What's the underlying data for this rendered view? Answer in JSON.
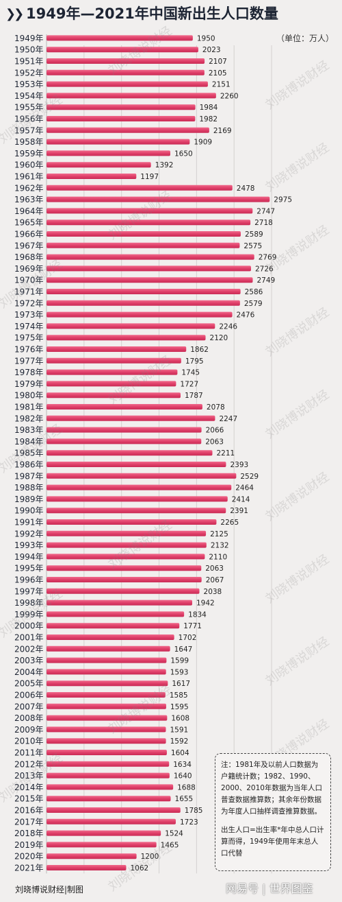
{
  "header": {
    "title": "1949年—2021年中国新出生人口数量",
    "unit": "（单位：万人）"
  },
  "chart_data": {
    "type": "bar",
    "orientation": "horizontal",
    "title": "1949年—2021年中国新出生人口数量",
    "unit": "（单位：万人）",
    "xlim": [
      0,
      3100
    ],
    "grid": true,
    "bar_color": "#e0406a",
    "categories": [
      "1949年",
      "1950年",
      "1951年",
      "1952年",
      "1953年",
      "1954年",
      "1955年",
      "1956年",
      "1957年",
      "1958年",
      "1959年",
      "1960年",
      "1961年",
      "1962年",
      "1963年",
      "1964年",
      "1965年",
      "1966年",
      "1967年",
      "1968年",
      "1969年",
      "1970年",
      "1971年",
      "1972年",
      "1973年",
      "1974年",
      "1975年",
      "1976年",
      "1977年",
      "1978年",
      "1979年",
      "1980年",
      "1981年",
      "1982年",
      "1983年",
      "1984年",
      "1985年",
      "1986年",
      "1987年",
      "1988年",
      "1989年",
      "1990年",
      "1991年",
      "1992年",
      "1993年",
      "1994年",
      "1995年",
      "1996年",
      "1997年",
      "1998年",
      "1999年",
      "2000年",
      "2001年",
      "2002年",
      "2003年",
      "2004年",
      "2005年",
      "2006年",
      "2007年",
      "2008年",
      "2009年",
      "2010年",
      "2011年",
      "2012年",
      "2013年",
      "2014年",
      "2015年",
      "2016年",
      "2017年",
      "2018年",
      "2019年",
      "2020年",
      "2021年"
    ],
    "values": [
      1950,
      2023,
      2107,
      2105,
      2151,
      2260,
      1984,
      1982,
      2169,
      1909,
      1650,
      1392,
      1197,
      2478,
      2975,
      2747,
      2718,
      2589,
      2575,
      2769,
      2726,
      2749,
      2586,
      2579,
      2476,
      2246,
      2120,
      1862,
      1795,
      1745,
      1727,
      1787,
      2078,
      2247,
      2066,
      2063,
      2211,
      2393,
      2529,
      2464,
      2414,
      2391,
      2265,
      2125,
      2132,
      2110,
      2063,
      2067,
      2038,
      1942,
      1834,
      1771,
      1702,
      1647,
      1599,
      1593,
      1617,
      1585,
      1595,
      1608,
      1591,
      1592,
      1604,
      1634,
      1640,
      1688,
      1655,
      1785,
      1723,
      1524,
      1465,
      1200,
      1062
    ]
  },
  "note": {
    "line1": "注：1981年及以前人口数据为户籍统计数；1982、1990、2000、2010年数据为当年人口普查数据推算数；其余年份数据为年度人口抽样调查推算数据。",
    "line2": "出生人口=出生率*年中总人口计算而得，1949年使用年末总人口代替"
  },
  "footer": {
    "credit": "刘晓博说财经|制图",
    "logo": "网易号 | 世界图鉴"
  },
  "watermark": "刘晓博说财经"
}
